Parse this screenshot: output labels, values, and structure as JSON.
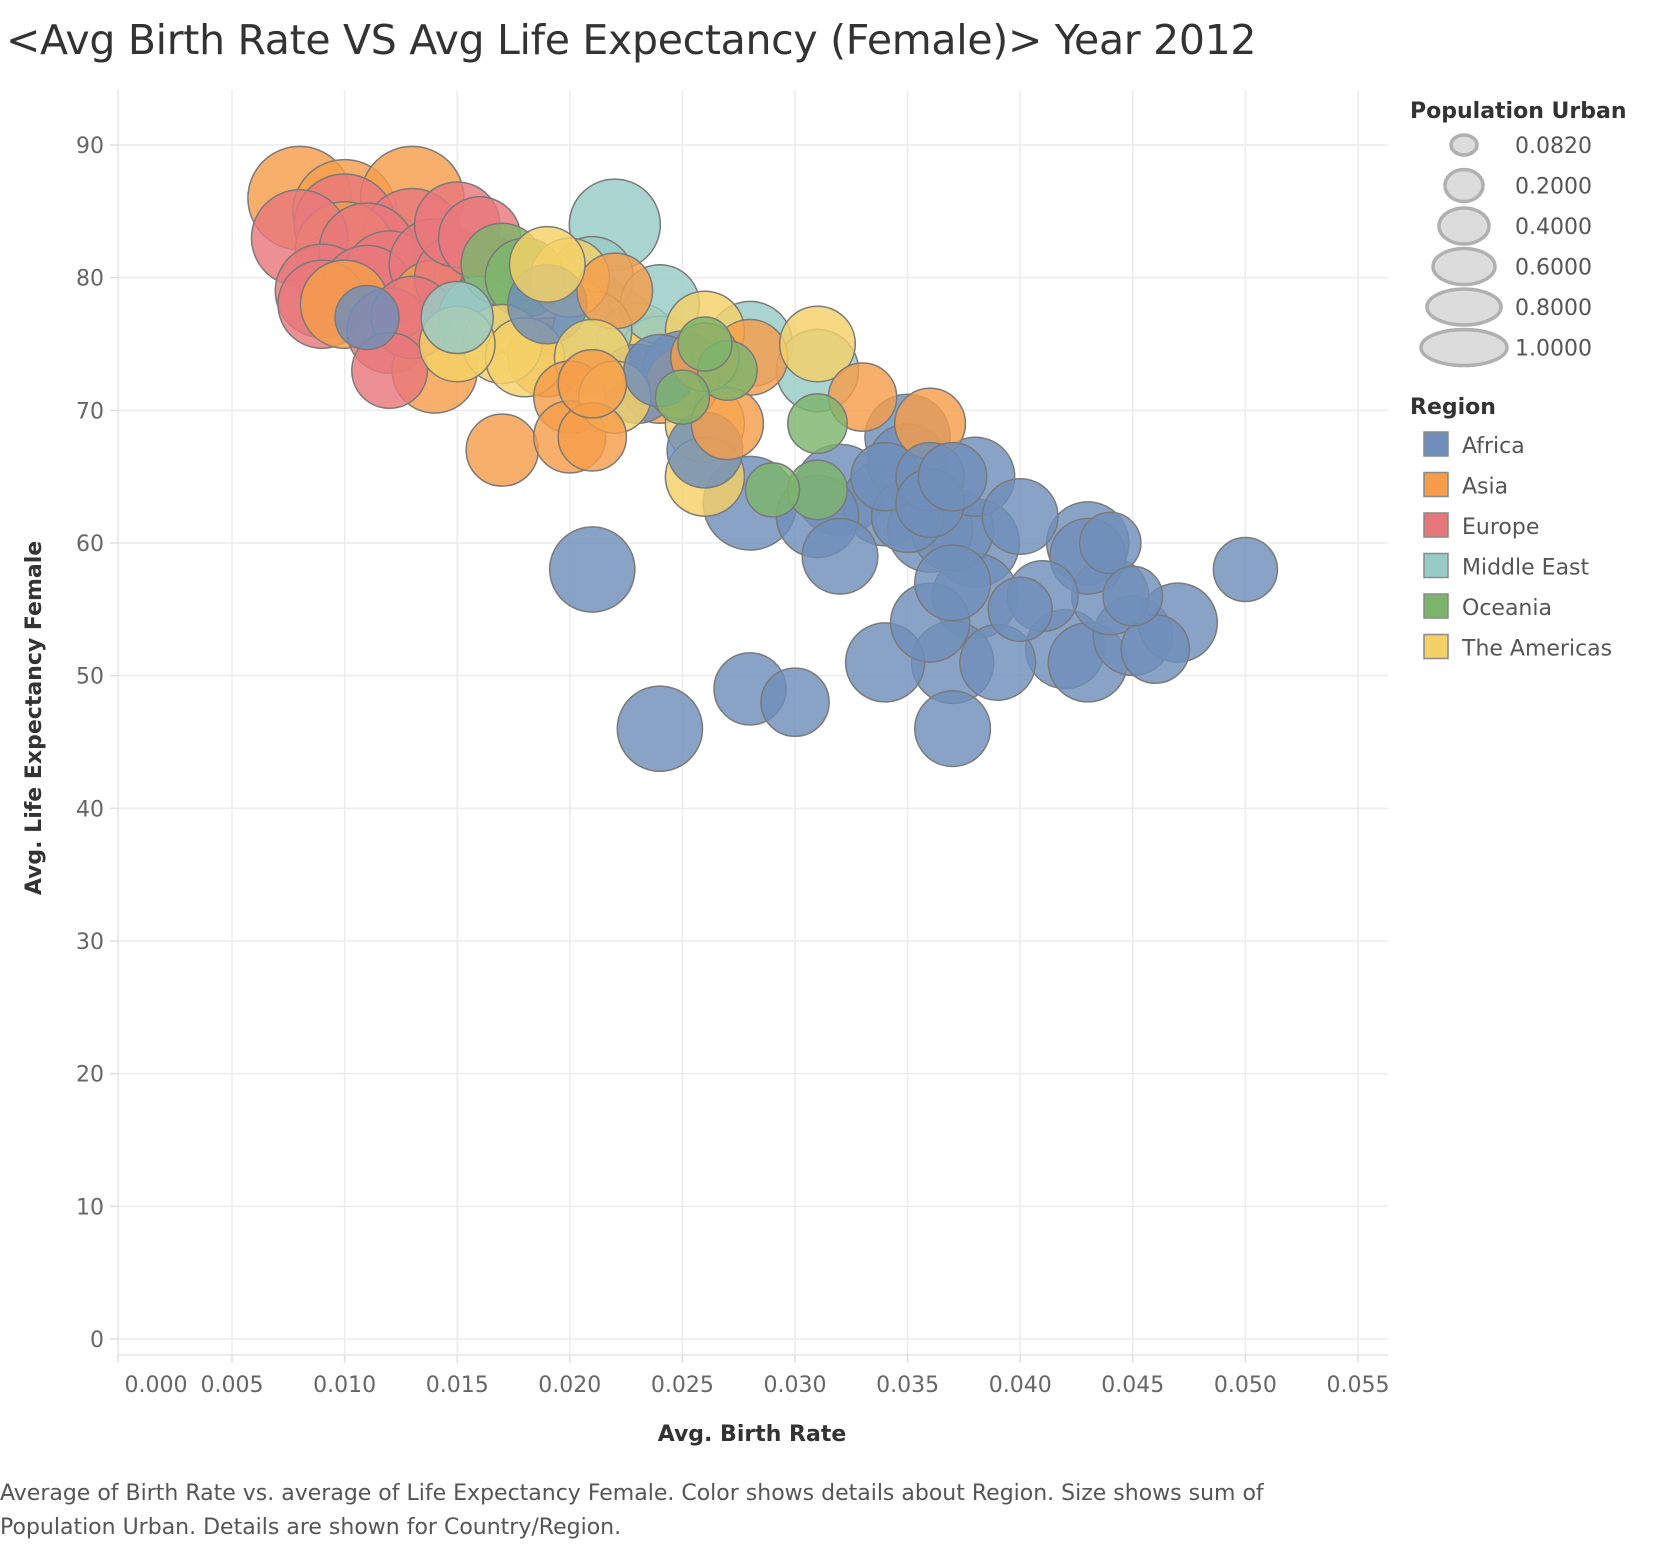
{
  "chart_data": {
    "type": "scatter",
    "title": "<Avg Birth Rate VS Avg Life Expectancy (Female)> Year 2012",
    "xlabel": "Avg. Birth Rate",
    "ylabel": "Avg. Life Expectancy Female",
    "xlim": [
      0.0,
      0.055
    ],
    "ylim": [
      0,
      90
    ],
    "x_ticks": [
      "0.000",
      "0.005",
      "0.010",
      "0.015",
      "0.020",
      "0.025",
      "0.030",
      "0.035",
      "0.040",
      "0.045",
      "0.050",
      "0.055"
    ],
    "y_ticks": [
      "0",
      "10",
      "20",
      "30",
      "40",
      "50",
      "60",
      "70",
      "80",
      "90"
    ],
    "grid": true,
    "size_legend": {
      "title": "Population Urban",
      "values": [
        "0.0820",
        "0.2000",
        "0.4000",
        "0.6000",
        "0.8000",
        "1.0000"
      ]
    },
    "color_legend": {
      "title": "Region",
      "entries": [
        {
          "name": "Africa",
          "color": "#6f8fba"
        },
        {
          "name": "Asia",
          "color": "#f59d4a"
        },
        {
          "name": "Europe",
          "color": "#e8777b"
        },
        {
          "name": "Middle East",
          "color": "#96cbc6"
        },
        {
          "name": "Oceania",
          "color": "#7db46c"
        },
        {
          "name": "The Americas",
          "color": "#f4d166"
        }
      ]
    },
    "series": [
      {
        "name": "Europe",
        "points": [
          {
            "x": 0.008,
            "y": 83,
            "size": 0.75
          },
          {
            "x": 0.009,
            "y": 79,
            "size": 0.7
          },
          {
            "x": 0.009,
            "y": 78,
            "size": 0.6
          },
          {
            "x": 0.01,
            "y": 84,
            "size": 0.85
          },
          {
            "x": 0.01,
            "y": 80,
            "size": 0.8
          },
          {
            "x": 0.011,
            "y": 82,
            "size": 0.75
          },
          {
            "x": 0.011,
            "y": 79,
            "size": 0.65
          },
          {
            "x": 0.012,
            "y": 76,
            "size": 0.55
          },
          {
            "x": 0.012,
            "y": 80,
            "size": 0.7
          },
          {
            "x": 0.013,
            "y": 83,
            "size": 0.8
          },
          {
            "x": 0.014,
            "y": 81,
            "size": 0.65
          },
          {
            "x": 0.015,
            "y": 80,
            "size": 0.55
          },
          {
            "x": 0.016,
            "y": 83,
            "size": 0.5
          },
          {
            "x": 0.012,
            "y": 73,
            "size": 0.4
          },
          {
            "x": 0.017,
            "y": 79,
            "size": 0.55
          },
          {
            "x": 0.013,
            "y": 77,
            "size": 0.5
          },
          {
            "x": 0.015,
            "y": 84,
            "size": 0.55
          }
        ]
      },
      {
        "name": "Asia",
        "points": [
          {
            "x": 0.008,
            "y": 86,
            "size": 0.9
          },
          {
            "x": 0.01,
            "y": 85,
            "size": 0.9
          },
          {
            "x": 0.013,
            "y": 86,
            "size": 0.9
          },
          {
            "x": 0.01,
            "y": 82,
            "size": 0.8
          },
          {
            "x": 0.01,
            "y": 78,
            "size": 0.6
          },
          {
            "x": 0.014,
            "y": 78,
            "size": 0.6
          },
          {
            "x": 0.014,
            "y": 73,
            "size": 0.55
          },
          {
            "x": 0.016,
            "y": 80,
            "size": 0.65
          },
          {
            "x": 0.017,
            "y": 67,
            "size": 0.35
          },
          {
            "x": 0.019,
            "y": 74,
            "size": 0.45
          },
          {
            "x": 0.02,
            "y": 71,
            "size": 0.35
          },
          {
            "x": 0.02,
            "y": 68,
            "size": 0.35
          },
          {
            "x": 0.021,
            "y": 68,
            "size": 0.3
          },
          {
            "x": 0.022,
            "y": 79,
            "size": 0.4
          },
          {
            "x": 0.023,
            "y": 74,
            "size": 0.5
          },
          {
            "x": 0.024,
            "y": 72,
            "size": 0.45
          },
          {
            "x": 0.025,
            "y": 72,
            "size": 0.35
          },
          {
            "x": 0.026,
            "y": 74,
            "size": 0.3
          },
          {
            "x": 0.027,
            "y": 69,
            "size": 0.35
          },
          {
            "x": 0.028,
            "y": 74,
            "size": 0.4
          },
          {
            "x": 0.033,
            "y": 71,
            "size": 0.3
          },
          {
            "x": 0.036,
            "y": 69,
            "size": 0.33
          },
          {
            "x": 0.018,
            "y": 77,
            "size": 0.5
          },
          {
            "x": 0.021,
            "y": 72,
            "size": 0.3
          }
        ]
      },
      {
        "name": "Middle East",
        "points": [
          {
            "x": 0.022,
            "y": 84,
            "size": 0.65
          },
          {
            "x": 0.021,
            "y": 80,
            "size": 0.5
          },
          {
            "x": 0.024,
            "y": 78,
            "size": 0.45
          },
          {
            "x": 0.028,
            "y": 75,
            "size": 0.55
          },
          {
            "x": 0.031,
            "y": 73,
            "size": 0.5
          },
          {
            "x": 0.016,
            "y": 77,
            "size": 0.5
          },
          {
            "x": 0.021,
            "y": 76,
            "size": 0.45
          },
          {
            "x": 0.015,
            "y": 77,
            "size": 0.35
          }
        ]
      },
      {
        "name": "Oceania",
        "points": [
          {
            "x": 0.017,
            "y": 81,
            "size": 0.5
          },
          {
            "x": 0.018,
            "y": 80,
            "size": 0.45
          },
          {
            "x": 0.031,
            "y": 69,
            "size": 0.2
          },
          {
            "x": 0.029,
            "y": 64,
            "size": 0.15
          },
          {
            "x": 0.027,
            "y": 73,
            "size": 0.2
          },
          {
            "x": 0.026,
            "y": 75,
            "size": 0.15
          },
          {
            "x": 0.031,
            "y": 64,
            "size": 0.2
          },
          {
            "x": 0.025,
            "y": 71,
            "size": 0.15
          }
        ]
      },
      {
        "name": "The Americas",
        "points": [
          {
            "x": 0.015,
            "y": 75,
            "size": 0.4
          },
          {
            "x": 0.017,
            "y": 75,
            "size": 0.45
          },
          {
            "x": 0.018,
            "y": 74,
            "size": 0.45
          },
          {
            "x": 0.019,
            "y": 81,
            "size": 0.4
          },
          {
            "x": 0.02,
            "y": 80,
            "size": 0.45
          },
          {
            "x": 0.02,
            "y": 77,
            "size": 0.5
          },
          {
            "x": 0.022,
            "y": 76,
            "size": 0.55
          },
          {
            "x": 0.023,
            "y": 75,
            "size": 0.5
          },
          {
            "x": 0.024,
            "y": 74,
            "size": 0.5
          },
          {
            "x": 0.026,
            "y": 76,
            "size": 0.45
          },
          {
            "x": 0.026,
            "y": 69,
            "size": 0.45
          },
          {
            "x": 0.026,
            "y": 65,
            "size": 0.45
          },
          {
            "x": 0.031,
            "y": 75,
            "size": 0.4
          },
          {
            "x": 0.021,
            "y": 74,
            "size": 0.4
          },
          {
            "x": 0.022,
            "y": 71,
            "size": 0.35
          }
        ]
      },
      {
        "name": "Africa",
        "points": [
          {
            "x": 0.011,
            "y": 77,
            "size": 0.25
          },
          {
            "x": 0.019,
            "y": 78,
            "size": 0.45
          },
          {
            "x": 0.021,
            "y": 77,
            "size": 0.6
          },
          {
            "x": 0.023,
            "y": 72,
            "size": 0.45
          },
          {
            "x": 0.024,
            "y": 73,
            "size": 0.35
          },
          {
            "x": 0.025,
            "y": 73,
            "size": 0.45
          },
          {
            "x": 0.026,
            "y": 67,
            "size": 0.4
          },
          {
            "x": 0.021,
            "y": 58,
            "size": 0.55
          },
          {
            "x": 0.024,
            "y": 46,
            "size": 0.55
          },
          {
            "x": 0.028,
            "y": 63,
            "size": 0.7
          },
          {
            "x": 0.028,
            "y": 49,
            "size": 0.35
          },
          {
            "x": 0.03,
            "y": 48,
            "size": 0.3
          },
          {
            "x": 0.031,
            "y": 62,
            "size": 0.5
          },
          {
            "x": 0.032,
            "y": 64,
            "size": 0.65
          },
          {
            "x": 0.032,
            "y": 59,
            "size": 0.4
          },
          {
            "x": 0.034,
            "y": 63,
            "size": 0.55
          },
          {
            "x": 0.034,
            "y": 65,
            "size": 0.3
          },
          {
            "x": 0.034,
            "y": 51,
            "size": 0.45
          },
          {
            "x": 0.035,
            "y": 68,
            "size": 0.55
          },
          {
            "x": 0.035,
            "y": 66,
            "size": 0.45
          },
          {
            "x": 0.036,
            "y": 65,
            "size": 0.3
          },
          {
            "x": 0.036,
            "y": 61,
            "size": 0.55
          },
          {
            "x": 0.036,
            "y": 54,
            "size": 0.45
          },
          {
            "x": 0.036,
            "y": 63,
            "size": 0.3
          },
          {
            "x": 0.037,
            "y": 65,
            "size": 0.3
          },
          {
            "x": 0.037,
            "y": 57,
            "size": 0.4
          },
          {
            "x": 0.037,
            "y": 51,
            "size": 0.5
          },
          {
            "x": 0.037,
            "y": 46,
            "size": 0.4
          },
          {
            "x": 0.038,
            "y": 65,
            "size": 0.45
          },
          {
            "x": 0.038,
            "y": 60,
            "size": 0.6
          },
          {
            "x": 0.038,
            "y": 56,
            "size": 0.55
          },
          {
            "x": 0.039,
            "y": 51,
            "size": 0.4
          },
          {
            "x": 0.04,
            "y": 62,
            "size": 0.4
          },
          {
            "x": 0.04,
            "y": 55,
            "size": 0.25
          },
          {
            "x": 0.041,
            "y": 56,
            "size": 0.33
          },
          {
            "x": 0.042,
            "y": 52,
            "size": 0.45
          },
          {
            "x": 0.043,
            "y": 60,
            "size": 0.5
          },
          {
            "x": 0.043,
            "y": 59,
            "size": 0.4
          },
          {
            "x": 0.043,
            "y": 51,
            "size": 0.45
          },
          {
            "x": 0.044,
            "y": 60,
            "size": 0.22
          },
          {
            "x": 0.044,
            "y": 56,
            "size": 0.42
          },
          {
            "x": 0.045,
            "y": 56,
            "size": 0.2
          },
          {
            "x": 0.045,
            "y": 53,
            "size": 0.45
          },
          {
            "x": 0.046,
            "y": 52,
            "size": 0.3
          },
          {
            "x": 0.047,
            "y": 54,
            "size": 0.45
          },
          {
            "x": 0.05,
            "y": 58,
            "size": 0.25
          },
          {
            "x": 0.035,
            "y": 62,
            "size": 0.35
          },
          {
            "x": 0.037,
            "y": 61,
            "size": 0.5
          }
        ]
      }
    ]
  },
  "caption": "Average of Birth Rate vs. average of Life Expectancy Female.  Color shows details about Region.  Size shows sum of Population Urban.  Details are shown for Country/Region."
}
